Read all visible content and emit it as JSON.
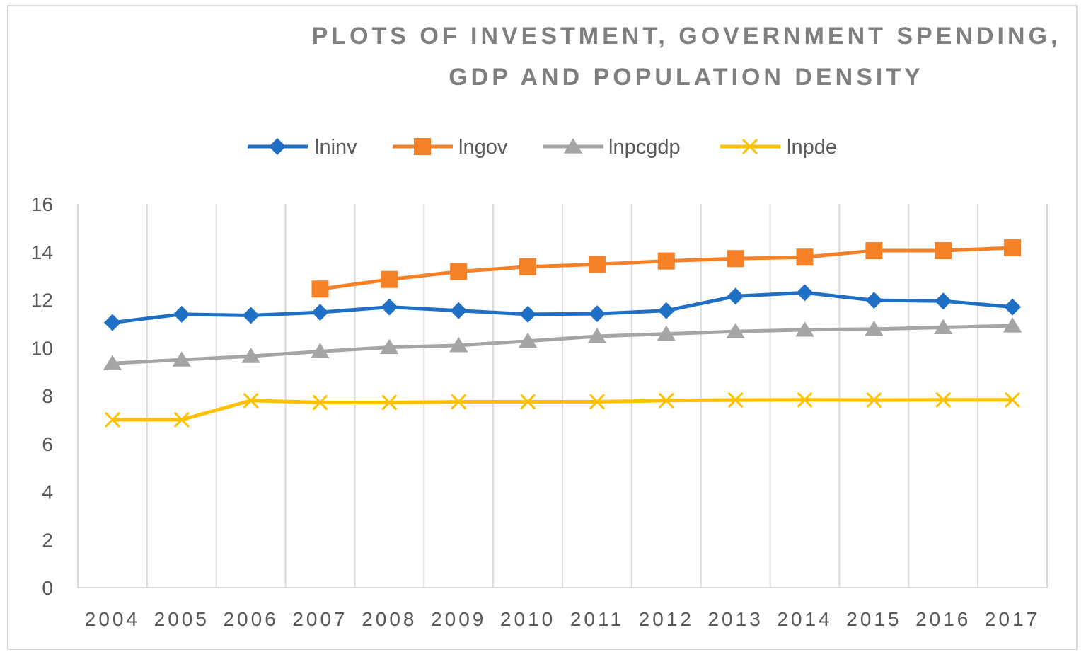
{
  "chart_data": {
    "type": "line",
    "title_line1": "PLOTS OF INVESTMENT, GOVERNMENT SPENDING,",
    "title_line2": "GDP AND POPULATION DENSITY",
    "categories": [
      "2004",
      "2005",
      "2006",
      "2007",
      "2008",
      "2009",
      "2010",
      "2011",
      "2012",
      "2013",
      "2014",
      "2015",
      "2016",
      "2017"
    ],
    "ylim": [
      0,
      16
    ],
    "yticks": [
      0,
      2,
      4,
      6,
      8,
      10,
      12,
      14,
      16
    ],
    "grid": "vertical",
    "legend_position": "top",
    "xlabel": "",
    "ylabel": "",
    "series": [
      {
        "name": "lninv",
        "color": "#1f6fc5",
        "marker": "diamond",
        "values": [
          11.05,
          11.4,
          11.35,
          11.48,
          11.7,
          11.55,
          11.4,
          11.42,
          11.55,
          12.15,
          12.3,
          11.98,
          11.95,
          11.7
        ]
      },
      {
        "name": "lngov",
        "color": "#f58025",
        "marker": "square",
        "values": [
          null,
          null,
          null,
          12.45,
          12.85,
          13.18,
          13.38,
          13.48,
          13.62,
          13.72,
          13.78,
          14.05,
          14.05,
          14.17
        ]
      },
      {
        "name": "lnpcgdp",
        "color": "#a5a5a5",
        "marker": "triangle",
        "values": [
          9.35,
          9.5,
          9.65,
          9.85,
          10.02,
          10.1,
          10.28,
          10.48,
          10.58,
          10.68,
          10.75,
          10.78,
          10.85,
          10.92
        ]
      },
      {
        "name": "lnpde",
        "color": "#ffc000",
        "marker": "x",
        "values": [
          7.0,
          7.0,
          7.8,
          7.72,
          7.72,
          7.75,
          7.75,
          7.75,
          7.8,
          7.82,
          7.83,
          7.82,
          7.83,
          7.83
        ]
      }
    ]
  }
}
